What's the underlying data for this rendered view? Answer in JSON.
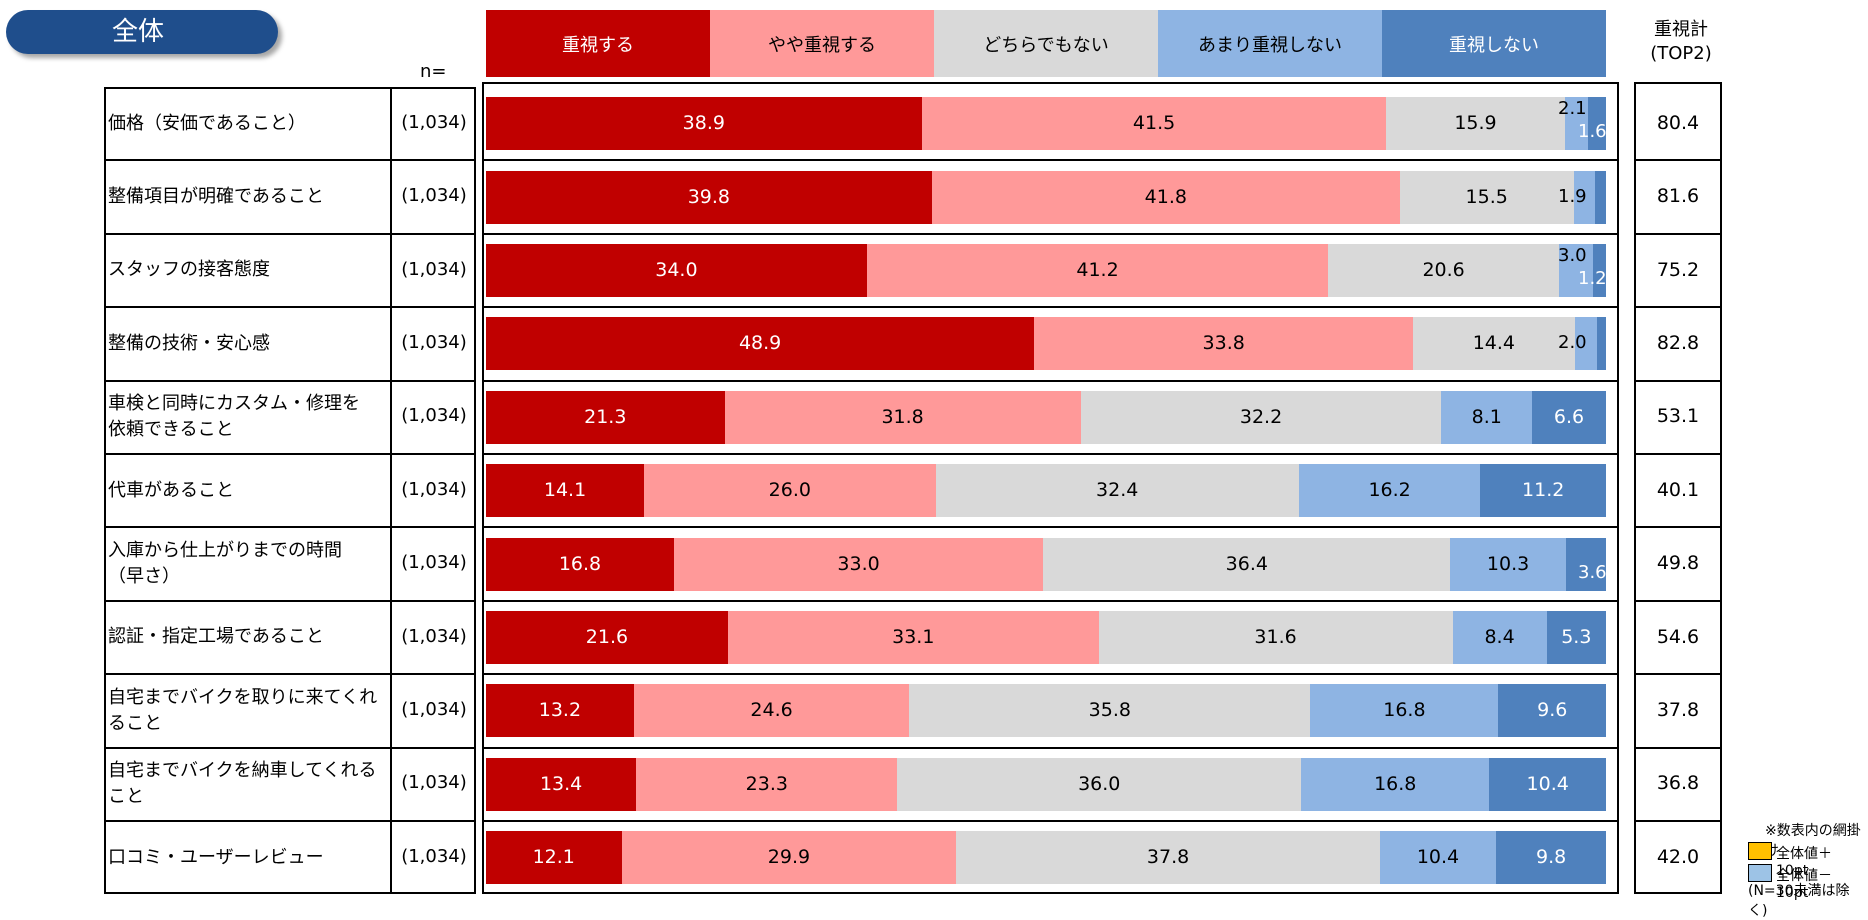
{
  "header": {
    "tab_label": "全体",
    "n_label": "n=",
    "top2_label_line1": "重視計",
    "top2_label_line2": "(TOP2)"
  },
  "colors": {
    "cat1": "#c00000",
    "cat2": "#ff9999",
    "cat3": "#d9d9d9",
    "cat4": "#8eb4e3",
    "cat5": "#4f81bd",
    "tab": "#1f4e8c",
    "note_up": "#ffc000",
    "note_down": "#9dc3e6"
  },
  "chart_data": {
    "type": "bar",
    "orientation": "horizontal",
    "stacked": true,
    "xlim": [
      0,
      100
    ],
    "series": [
      {
        "name": "重視する",
        "values": [
          38.9,
          39.8,
          34.0,
          48.9,
          21.3,
          14.1,
          16.8,
          21.6,
          13.2,
          13.4,
          12.1
        ]
      },
      {
        "name": "やや重視する",
        "values": [
          41.5,
          41.8,
          41.2,
          33.8,
          31.8,
          26.0,
          33.0,
          33.1,
          24.6,
          23.3,
          29.9
        ]
      },
      {
        "name": "どちらでもない",
        "values": [
          15.9,
          15.5,
          20.6,
          14.4,
          32.2,
          32.4,
          36.4,
          31.6,
          35.8,
          36.0,
          37.8
        ]
      },
      {
        "name": "あまり重視しない",
        "values": [
          2.1,
          1.9,
          3.0,
          2.0,
          8.1,
          16.2,
          10.3,
          8.4,
          16.8,
          16.8,
          10.4
        ]
      },
      {
        "name": "重視しない",
        "values": [
          1.6,
          1.0,
          1.2,
          0.8,
          6.6,
          11.2,
          3.6,
          5.3,
          9.6,
          10.4,
          9.8
        ]
      }
    ],
    "shown_labels": [
      [
        "38.9",
        "41.5",
        "15.9",
        "2.1",
        "1.6"
      ],
      [
        "39.8",
        "41.8",
        "15.5",
        "1.9",
        ""
      ],
      [
        "34.0",
        "41.2",
        "20.6",
        "3.0",
        "1.2"
      ],
      [
        "48.9",
        "33.8",
        "14.4",
        "2.0",
        ""
      ],
      [
        "21.3",
        "31.8",
        "32.2",
        "8.1",
        "6.6"
      ],
      [
        "14.1",
        "26.0",
        "32.4",
        "16.2",
        "11.2"
      ],
      [
        "16.8",
        "33.0",
        "36.4",
        "10.3",
        "3.6"
      ],
      [
        "21.6",
        "33.1",
        "31.6",
        "8.4",
        "5.3"
      ],
      [
        "13.2",
        "24.6",
        "35.8",
        "16.8",
        "9.6"
      ],
      [
        "13.4",
        "23.3",
        "36.0",
        "16.8",
        "10.4"
      ],
      [
        "12.1",
        "29.9",
        "37.8",
        "10.4",
        "9.8"
      ]
    ],
    "categories": [
      [
        "価格（安価であること）"
      ],
      [
        "整備項目が明確であること"
      ],
      [
        "スタッフの接客態度"
      ],
      [
        "整備の技術・安心感"
      ],
      [
        "車検と同時にカスタム・修理を",
        "依頼できること"
      ],
      [
        "代車があること"
      ],
      [
        "入庫から仕上がりまでの時間",
        "（早さ）"
      ],
      [
        "認証・指定工場であること"
      ],
      [
        "自宅までバイクを取りに来てくれること"
      ],
      [
        "自宅までバイクを納車してくれること"
      ],
      [
        "口コミ・ユーザーレビュー"
      ]
    ],
    "n": [
      "(1,034)",
      "(1,034)",
      "(1,034)",
      "(1,034)",
      "(1,034)",
      "(1,034)",
      "(1,034)",
      "(1,034)",
      "(1,034)",
      "(1,034)",
      "(1,034)"
    ],
    "top2": [
      "80.4",
      "81.6",
      "75.2",
      "82.8",
      "53.1",
      "40.1",
      "49.8",
      "54.6",
      "37.8",
      "36.8",
      "42.0"
    ]
  },
  "notes": {
    "title": "※数表内の網掛け",
    "up": "全体値＋ 10pt",
    "down": "全体値－ 10pt",
    "exclusion": "(N=30未満は除く)"
  }
}
